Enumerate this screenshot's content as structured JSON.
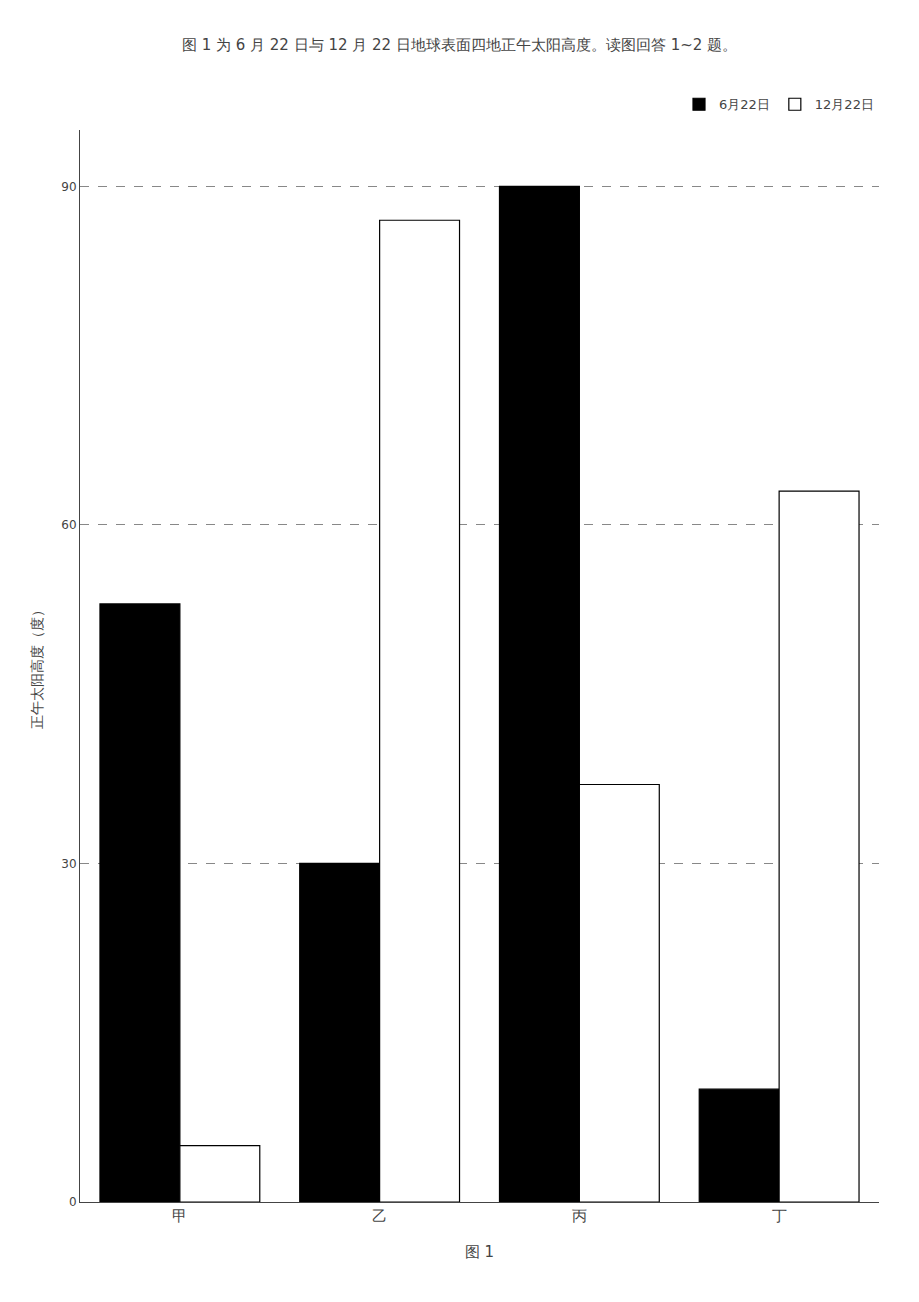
{
  "chart_data": {
    "type": "bar",
    "title": "图 1 为 6 月 22 日与 12 月 22 日地球表面四地正午太阳高度。读图回答 1~2 题。",
    "xlabel": "图 1",
    "ylabel": "正午太阳高度（度）",
    "categories": [
      "甲",
      "乙",
      "丙",
      "丁"
    ],
    "series": [
      {
        "name": "6月22日",
        "color": "#000000",
        "values": [
          53,
          30,
          90,
          10
        ]
      },
      {
        "name": "12月22日",
        "color": "#ffffff",
        "values": [
          5,
          87,
          37,
          63
        ]
      }
    ],
    "ylim": [
      0,
      95
    ],
    "yticks": [
      0,
      30,
      60,
      90
    ],
    "grid": true,
    "legend": "upper right"
  }
}
